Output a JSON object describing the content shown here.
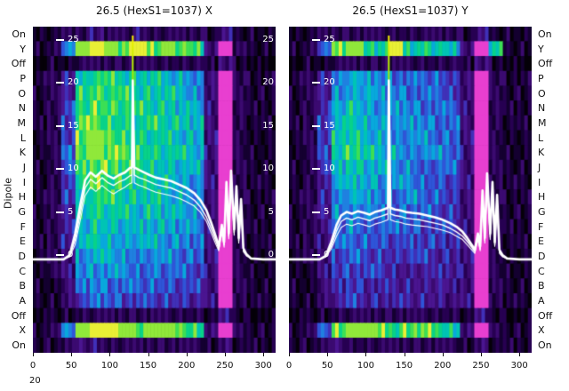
{
  "figure": {
    "ylabel": "Dipole",
    "footer_text": "20",
    "background": "#ffffff",
    "line_color": "#ffffff"
  },
  "dipole_labels": [
    "On",
    "Y",
    "Off",
    "P",
    "O",
    "N",
    "M",
    "L",
    "K",
    "J",
    "I",
    "H",
    "G",
    "F",
    "E",
    "D",
    "C",
    "B",
    "A",
    "Off",
    "X",
    "On"
  ],
  "colormap": [
    "#050008",
    "#140030",
    "#270052",
    "#3b0a70",
    "#4a1590",
    "#4030b8",
    "#2f55d8",
    "#2080e0",
    "#08a8dc",
    "#00c4b4",
    "#08d288",
    "#3cdf55",
    "#90e83a",
    "#e9ef35",
    "#e83fd0",
    "#ff9af0"
  ],
  "chart_data": [
    {
      "type": "heatmap",
      "title": "26.5 (HexS1=1037) X",
      "x_range": [
        0,
        316
      ],
      "xticks": [
        0,
        50,
        100,
        150,
        200,
        250,
        300
      ],
      "ytick_values": [
        25,
        20,
        15,
        10,
        5,
        0
      ],
      "ytick_labels": [
        "25",
        "20",
        "15",
        "10",
        "5",
        "0"
      ],
      "has_right_ytick_labels": true,
      "heat": [
        "11223223222213111",
        "127cdcbdbcba3e211",
        "01122222222213100",
        "1249aa9998873e211",
        "124abaa999873e211",
        "125abbaa99883e211",
        "125bbaa9a9983e211",
        "125bcbaa99883e211",
        "126bcbbaa9983e211",
        "126abbaa99883e211",
        "125abaa999873e211",
        "1259aa9998873e211",
        "1249a99898873e211",
        "1248998888773e211",
        "1248988887763e211",
        "1237887777663e211",
        "1237777676653e211",
        "1136766666553e211",
        "1135665555543e211",
        "01122222222213100",
        "127cddcbccba3e211",
        "11233222222213111"
      ],
      "overlay": {
        "type": "line",
        "spike_x": 130,
        "x": [
          0,
          40,
          48,
          55,
          62,
          68,
          75,
          82,
          90,
          98,
          105,
          112,
          120,
          126,
          129,
          130,
          132,
          138,
          145,
          152,
          160,
          170,
          180,
          190,
          200,
          210,
          218,
          226,
          232,
          238,
          242,
          246,
          249,
          252,
          255,
          258,
          262,
          265,
          268,
          271,
          274,
          278,
          284,
          300,
          316
        ],
        "series": [
          {
            "name": "trace-1",
            "y": [
              -0.5,
              -0.5,
              0,
              2.5,
              6,
              8.7,
              9.6,
              9.1,
              9.8,
              9.2,
              8.9,
              9.3,
              9.6,
              10.1,
              10.2,
              20.3,
              10.2,
              9.9,
              9.6,
              9.3,
              9.0,
              8.8,
              8.6,
              8.2,
              7.8,
              7.2,
              6.4,
              5.2,
              3.8,
              2.2,
              1.0,
              3.5,
              1.5,
              8.5,
              2.5,
              9.8,
              3.0,
              8.0,
              2.0,
              6.5,
              0.8,
              0.1,
              -0.4,
              -0.5,
              -0.5
            ]
          },
          {
            "name": "trace-2",
            "y": [
              -0.5,
              -0.5,
              -0.1,
              1.8,
              5.0,
              7.8,
              8.8,
              8.3,
              9.0,
              8.4,
              8.1,
              8.5,
              8.8,
              9.2,
              9.3,
              19.5,
              9.3,
              9.0,
              8.8,
              8.5,
              8.2,
              8.0,
              7.8,
              7.4,
              7.0,
              6.4,
              5.6,
              4.4,
              3.1,
              1.7,
              0.7,
              3.0,
              1.2,
              8.0,
              2.2,
              9.3,
              2.6,
              7.5,
              1.7,
              6.0,
              0.6,
              0.0,
              -0.4,
              -0.5,
              -0.5
            ]
          },
          {
            "name": "trace-3",
            "y": [
              -0.5,
              -0.5,
              -0.2,
              1.2,
              4.2,
              6.9,
              7.9,
              7.4,
              8.1,
              7.5,
              7.1,
              7.5,
              7.9,
              8.3,
              8.4,
              18.8,
              8.4,
              8.1,
              7.9,
              7.6,
              7.3,
              7.1,
              6.9,
              6.6,
              6.2,
              5.7,
              5.0,
              3.9,
              2.6,
              1.3,
              0.5,
              2.6,
              0.9,
              7.6,
              1.9,
              8.9,
              2.3,
              7.1,
              1.4,
              5.6,
              0.4,
              -0.1,
              -0.4,
              -0.5,
              -0.5
            ]
          }
        ]
      }
    },
    {
      "type": "heatmap",
      "title": "26.5 (HexS1=1037) Y",
      "x_range": [
        0,
        316
      ],
      "xticks": [
        0,
        50,
        100,
        150,
        200,
        250,
        300
      ],
      "ytick_values": [
        25,
        20,
        15,
        10,
        5,
        0
      ],
      "ytick_labels": [
        "25",
        "20",
        "15",
        "10",
        "5",
        "0"
      ],
      "has_right_ytick_labels": false,
      "heat": [
        "11222222222213111",
        "126bca9d9a983e911",
        "01122222222213100",
        "1247877666653e211",
        "1247887766653e211",
        "1248987776663e211",
        "1258988777663e211",
        "1259988777663e211",
        "1259a98877763e211",
        "1258988776663e211",
        "1248887776653e211",
        "1247877676653e211",
        "1247776666553e211",
        "1236766665553e211",
        "1236666555543e211",
        "1235655555443e211",
        "1135555444443e211",
        "1134544444433e211",
        "1134544444433e211",
        "01122222222213100",
        "126bccbabba93e211",
        "11232222222213111"
      ],
      "overlay": {
        "type": "line",
        "spike_x": 130,
        "x": [
          0,
          40,
          48,
          55,
          62,
          68,
          75,
          82,
          90,
          98,
          105,
          112,
          120,
          126,
          129,
          130,
          132,
          138,
          145,
          152,
          160,
          170,
          180,
          190,
          200,
          210,
          218,
          226,
          232,
          238,
          242,
          246,
          249,
          252,
          255,
          258,
          262,
          265,
          268,
          271,
          274,
          278,
          284,
          300,
          316
        ],
        "series": [
          {
            "name": "trace-1",
            "y": [
              -0.5,
              -0.5,
              -0.1,
              1.5,
              3.5,
              4.6,
              5.0,
              4.8,
              5.1,
              4.9,
              4.7,
              5.0,
              5.2,
              5.4,
              5.5,
              20.3,
              5.5,
              5.3,
              5.2,
              5.0,
              4.9,
              4.8,
              4.6,
              4.4,
              4.1,
              3.7,
              3.3,
              2.7,
              2.0,
              1.2,
              0.6,
              2.5,
              1.0,
              7.5,
              2.0,
              9.5,
              2.5,
              8.5,
              1.5,
              7.0,
              0.6,
              0.0,
              -0.4,
              -0.5,
              -0.5
            ]
          },
          {
            "name": "trace-2",
            "y": [
              -0.5,
              -0.5,
              -0.2,
              1.0,
              2.8,
              3.9,
              4.3,
              4.1,
              4.4,
              4.2,
              4.0,
              4.3,
              4.5,
              4.7,
              4.8,
              19.5,
              4.8,
              4.6,
              4.5,
              4.3,
              4.2,
              4.1,
              3.9,
              3.7,
              3.5,
              3.1,
              2.7,
              2.2,
              1.6,
              0.9,
              0.4,
              2.1,
              0.7,
              7.1,
              1.7,
              9.0,
              2.1,
              8.0,
              1.2,
              6.5,
              0.4,
              -0.1,
              -0.4,
              -0.5,
              -0.5
            ]
          },
          {
            "name": "trace-3",
            "y": [
              -0.5,
              -0.5,
              -0.2,
              0.7,
              2.2,
              3.2,
              3.6,
              3.4,
              3.7,
              3.5,
              3.3,
              3.6,
              3.8,
              4.0,
              4.1,
              18.8,
              4.1,
              3.9,
              3.8,
              3.6,
              3.5,
              3.4,
              3.3,
              3.1,
              2.9,
              2.6,
              2.2,
              1.8,
              1.2,
              0.6,
              0.2,
              1.8,
              0.5,
              6.7,
              1.4,
              8.6,
              1.8,
              7.6,
              1.0,
              6.1,
              0.2,
              -0.2,
              -0.4,
              -0.5,
              -0.5
            ]
          }
        ]
      }
    }
  ]
}
